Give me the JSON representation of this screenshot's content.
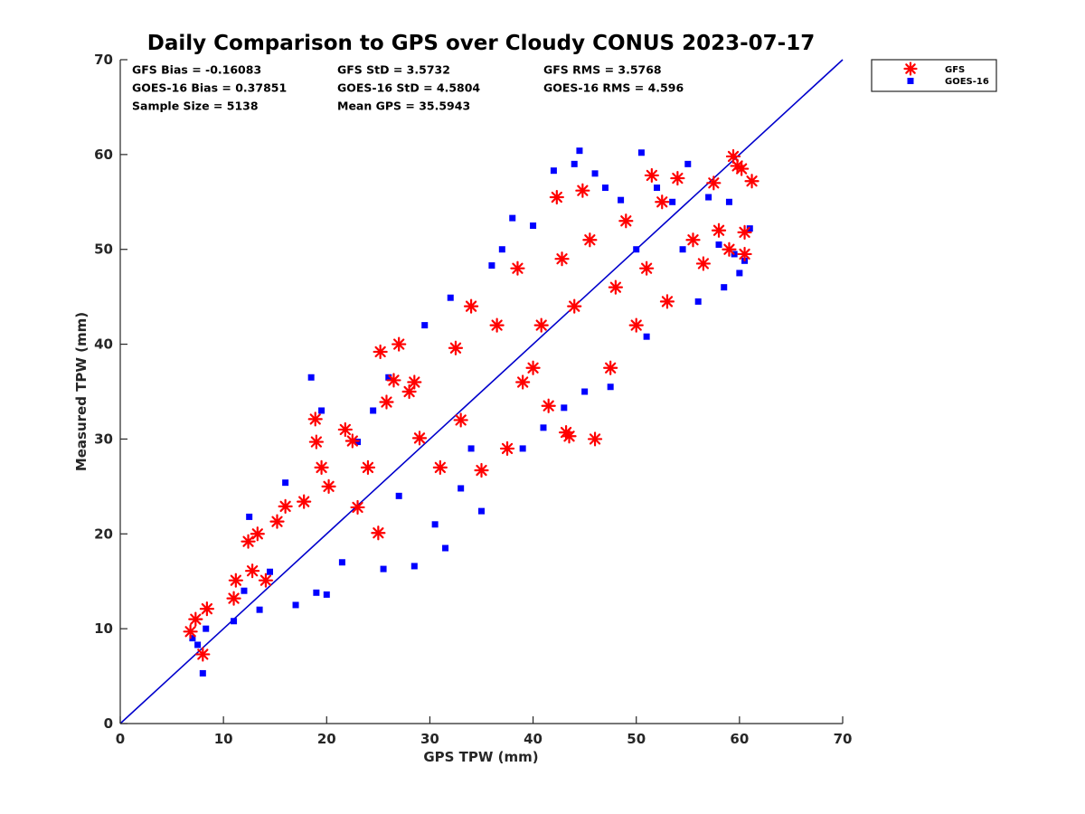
{
  "chart_data": {
    "type": "scatter",
    "title": "Daily Comparison to GPS over Cloudy CONUS 2023-07-17",
    "xlabel": "GPS TPW (mm)",
    "ylabel": "Measured TPW (mm)",
    "xlim": [
      0,
      70
    ],
    "ylim": [
      0,
      70
    ],
    "xticks": [
      "0",
      "10",
      "20",
      "30",
      "40",
      "50",
      "60",
      "70"
    ],
    "yticks": [
      "0",
      "10",
      "20",
      "30",
      "40",
      "50",
      "60",
      "70"
    ],
    "grid": false,
    "legend_position": "outside-top-right",
    "stats": [
      "GFS Bias = -0.16083",
      "GOES-16 Bias = 0.37851",
      "Sample Size = 5138",
      "GFS StD = 3.5732",
      "GOES-16 StD = 4.5804",
      "Mean GPS = 35.5943",
      "GFS RMS = 3.5768",
      "GOES-16 RMS = 4.596"
    ],
    "reference_line": {
      "x": [
        0,
        70
      ],
      "y": [
        0,
        70
      ],
      "color": "#0000cc"
    },
    "series": [
      {
        "name": "GFS",
        "marker": "asterisk",
        "color": "#ff0000",
        "points": [
          [
            6.8,
            9.7
          ],
          [
            7.3,
            11.0
          ],
          [
            8.0,
            7.3
          ],
          [
            8.4,
            12.1
          ],
          [
            11.0,
            13.2
          ],
          [
            11.2,
            15.1
          ],
          [
            12.4,
            19.2
          ],
          [
            12.8,
            16.1
          ],
          [
            13.3,
            20.0
          ],
          [
            14.1,
            15.1
          ],
          [
            15.2,
            21.3
          ],
          [
            16.0,
            22.9
          ],
          [
            17.8,
            23.4
          ],
          [
            18.9,
            32.1
          ],
          [
            19.0,
            29.7
          ],
          [
            19.5,
            27.0
          ],
          [
            20.2,
            25.0
          ],
          [
            21.8,
            31.0
          ],
          [
            22.5,
            29.8
          ],
          [
            23.0,
            22.8
          ],
          [
            24.0,
            27.0
          ],
          [
            25.0,
            20.1
          ],
          [
            25.2,
            39.2
          ],
          [
            25.8,
            33.9
          ],
          [
            26.5,
            36.2
          ],
          [
            27.0,
            40.0
          ],
          [
            28.0,
            35.0
          ],
          [
            28.5,
            36.0
          ],
          [
            29.0,
            30.1
          ],
          [
            31.0,
            27.0
          ],
          [
            32.5,
            39.6
          ],
          [
            33.0,
            32.0
          ],
          [
            34.0,
            44.0
          ],
          [
            35.0,
            26.7
          ],
          [
            36.5,
            42.0
          ],
          [
            37.5,
            29.0
          ],
          [
            38.5,
            48.0
          ],
          [
            39.0,
            36.0
          ],
          [
            40.0,
            37.5
          ],
          [
            40.8,
            42.0
          ],
          [
            41.5,
            33.5
          ],
          [
            42.3,
            55.5
          ],
          [
            42.8,
            49.0
          ],
          [
            43.2,
            30.7
          ],
          [
            43.5,
            30.3
          ],
          [
            44.0,
            44.0
          ],
          [
            44.8,
            56.2
          ],
          [
            45.5,
            51.0
          ],
          [
            46.0,
            30.0
          ],
          [
            47.5,
            37.5
          ],
          [
            48.0,
            46.0
          ],
          [
            49.0,
            53.0
          ],
          [
            50.0,
            42.0
          ],
          [
            51.0,
            48.0
          ],
          [
            51.5,
            57.8
          ],
          [
            52.5,
            55.0
          ],
          [
            53.0,
            44.5
          ],
          [
            54.0,
            57.5
          ],
          [
            55.5,
            51.0
          ],
          [
            56.5,
            48.5
          ],
          [
            57.5,
            57.0
          ],
          [
            58.0,
            52.0
          ],
          [
            59.0,
            50.0
          ],
          [
            59.4,
            59.8
          ],
          [
            59.8,
            58.8
          ],
          [
            60.2,
            58.5
          ],
          [
            60.5,
            49.5
          ],
          [
            60.5,
            51.8
          ],
          [
            61.2,
            57.2
          ]
        ]
      },
      {
        "name": "GOES-16",
        "marker": "square",
        "color": "#0000ff",
        "points": [
          [
            7.0,
            9.0
          ],
          [
            7.5,
            8.3
          ],
          [
            8.0,
            5.3
          ],
          [
            8.3,
            10.0
          ],
          [
            11.0,
            10.8
          ],
          [
            12.0,
            14.0
          ],
          [
            12.5,
            21.8
          ],
          [
            13.5,
            12.0
          ],
          [
            14.5,
            16.0
          ],
          [
            16.0,
            25.4
          ],
          [
            17.0,
            12.5
          ],
          [
            18.5,
            36.5
          ],
          [
            19.0,
            13.8
          ],
          [
            19.5,
            33.0
          ],
          [
            20.0,
            13.6
          ],
          [
            21.5,
            17.0
          ],
          [
            23.0,
            29.7
          ],
          [
            24.5,
            33.0
          ],
          [
            25.5,
            16.3
          ],
          [
            26.0,
            36.5
          ],
          [
            27.0,
            24.0
          ],
          [
            28.5,
            16.6
          ],
          [
            29.5,
            42.0
          ],
          [
            30.5,
            21.0
          ],
          [
            31.5,
            18.5
          ],
          [
            32.0,
            44.9
          ],
          [
            33.0,
            24.8
          ],
          [
            34.0,
            29.0
          ],
          [
            35.0,
            22.4
          ],
          [
            36.0,
            48.3
          ],
          [
            37.0,
            50.0
          ],
          [
            38.0,
            53.3
          ],
          [
            39.0,
            29.0
          ],
          [
            40.0,
            52.5
          ],
          [
            41.0,
            31.2
          ],
          [
            42.0,
            58.3
          ],
          [
            43.0,
            33.3
          ],
          [
            44.0,
            59.0
          ],
          [
            44.5,
            60.4
          ],
          [
            45.0,
            35.0
          ],
          [
            46.0,
            58.0
          ],
          [
            47.0,
            56.5
          ],
          [
            47.5,
            35.5
          ],
          [
            48.5,
            55.2
          ],
          [
            50.0,
            50.0
          ],
          [
            50.5,
            60.2
          ],
          [
            51.0,
            40.8
          ],
          [
            52.0,
            56.5
          ],
          [
            53.5,
            55.0
          ],
          [
            54.5,
            50.0
          ],
          [
            55.0,
            59.0
          ],
          [
            56.0,
            44.5
          ],
          [
            57.0,
            55.5
          ],
          [
            58.0,
            50.5
          ],
          [
            58.5,
            46.0
          ],
          [
            59.0,
            55.0
          ],
          [
            59.5,
            49.5
          ],
          [
            60.0,
            47.5
          ],
          [
            60.5,
            48.8
          ],
          [
            61.0,
            52.2
          ]
        ]
      }
    ]
  }
}
